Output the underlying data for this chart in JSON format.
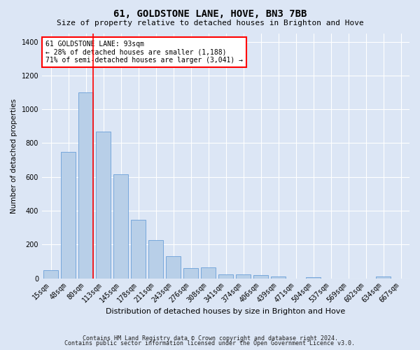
{
  "title": "61, GOLDSTONE LANE, HOVE, BN3 7BB",
  "subtitle": "Size of property relative to detached houses in Brighton and Hove",
  "xlabel": "Distribution of detached houses by size in Brighton and Hove",
  "ylabel": "Number of detached properties",
  "footer1": "Contains HM Land Registry data © Crown copyright and database right 2024.",
  "footer2": "Contains public sector information licensed under the Open Government Licence v3.0.",
  "categories": [
    "15sqm",
    "48sqm",
    "80sqm",
    "113sqm",
    "145sqm",
    "178sqm",
    "211sqm",
    "243sqm",
    "276sqm",
    "308sqm",
    "341sqm",
    "374sqm",
    "406sqm",
    "439sqm",
    "471sqm",
    "504sqm",
    "537sqm",
    "569sqm",
    "602sqm",
    "634sqm",
    "667sqm"
  ],
  "values": [
    50,
    750,
    1100,
    870,
    615,
    345,
    225,
    130,
    60,
    65,
    25,
    25,
    20,
    12,
    0,
    8,
    0,
    0,
    0,
    10,
    0
  ],
  "bar_color": "#b8cfe8",
  "bar_edgecolor": "#6a9fd8",
  "background_color": "#dce6f5",
  "grid_color": "#ffffff",
  "red_line_x": 2.42,
  "annotation_text": "61 GOLDSTONE LANE: 93sqm\n← 28% of detached houses are smaller (1,188)\n71% of semi-detached houses are larger (3,041) →",
  "ylim": [
    0,
    1450
  ],
  "yticks": [
    0,
    200,
    400,
    600,
    800,
    1000,
    1200,
    1400
  ],
  "title_fontsize": 10,
  "subtitle_fontsize": 8,
  "ylabel_fontsize": 7.5,
  "xlabel_fontsize": 8,
  "tick_fontsize": 7,
  "annot_fontsize": 7,
  "footer_fontsize": 6
}
